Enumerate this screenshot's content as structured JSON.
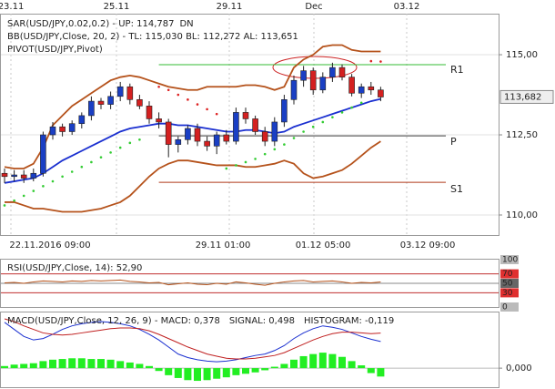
{
  "chart_data": [
    {
      "type": "candlestick",
      "legend": [
        "SAR(USD/JPY,0.02,0.2)  -  UP: 114,787",
        "BB(USD/JPY,Close, 20, 2)  -  TL: 115,030  BL: 112,272  AL: 113,651",
        "PIVOT(USD/JPY,Pivot)"
      ],
      "legend_colors": [
        "#b02020",
        "#b02020",
        "#000000"
      ],
      "sar_dn": "DN",
      "sar_dn_color": "#22bb22",
      "time_top": [
        "23.11",
        "25.11",
        "29.11",
        "Dec",
        "03.12"
      ],
      "time_bottom": [
        "22.11.2016 09:00",
        "29.11 01:00",
        "01.12 05:00",
        "03.12 09:00"
      ],
      "open": [
        111.3,
        111.2,
        111.25,
        111.15,
        111.3,
        112.5,
        112.75,
        112.6,
        112.85,
        113.1,
        113.55,
        113.45,
        113.7,
        114.0,
        113.6,
        113.4,
        113.0,
        112.9,
        112.2,
        112.35,
        112.7,
        112.3,
        112.15,
        112.5,
        112.3,
        113.2,
        113.0,
        112.6,
        112.3,
        112.9,
        113.6,
        114.2,
        114.5,
        113.9,
        114.3,
        114.6,
        114.3,
        113.8,
        114.0,
        113.9
      ],
      "high": [
        111.45,
        111.4,
        111.4,
        111.45,
        112.6,
        112.9,
        112.85,
        112.95,
        113.2,
        113.7,
        113.65,
        113.85,
        114.15,
        114.1,
        113.75,
        113.55,
        113.2,
        113.0,
        112.45,
        112.8,
        112.85,
        112.45,
        112.6,
        112.65,
        113.35,
        113.35,
        113.1,
        112.75,
        113.05,
        113.75,
        114.35,
        114.65,
        114.6,
        114.45,
        114.75,
        114.7,
        114.4,
        114.1,
        114.15,
        114.0
      ],
      "low": [
        111.0,
        111.05,
        111.0,
        111.05,
        111.2,
        112.35,
        112.45,
        112.5,
        112.7,
        112.95,
        113.3,
        113.3,
        113.55,
        113.45,
        113.3,
        112.85,
        112.7,
        111.8,
        111.95,
        112.2,
        112.15,
        112.0,
        111.9,
        112.2,
        112.2,
        112.85,
        112.5,
        112.15,
        112.15,
        112.75,
        113.45,
        114.0,
        113.75,
        113.8,
        114.15,
        114.2,
        113.7,
        113.65,
        113.75,
        113.55
      ],
      "close": [
        111.2,
        111.25,
        111.15,
        111.3,
        112.5,
        112.75,
        112.6,
        112.85,
        113.1,
        113.55,
        113.45,
        113.7,
        114.0,
        113.6,
        113.4,
        113.0,
        112.9,
        112.2,
        112.35,
        112.7,
        112.3,
        112.15,
        112.5,
        112.3,
        113.2,
        113.0,
        112.6,
        112.3,
        112.9,
        113.6,
        114.2,
        114.5,
        113.9,
        114.3,
        114.6,
        114.3,
        113.8,
        114.0,
        113.9,
        113.68
      ],
      "up_color": "#1a3fc4",
      "down_color": "#d42020",
      "overlays": [
        {
          "color": "#b5521b",
          "values": [
            111.5,
            111.45,
            111.45,
            111.6,
            112.1,
            112.8,
            113.1,
            113.4,
            113.6,
            113.8,
            114.0,
            114.2,
            114.3,
            114.35,
            114.3,
            114.2,
            114.1,
            114.0,
            113.95,
            113.9,
            113.9,
            114.0,
            114.0,
            114.0,
            114.0,
            114.05,
            114.05,
            114.0,
            113.9,
            114.0,
            114.6,
            114.85,
            115.0,
            115.25,
            115.3,
            115.3,
            115.15,
            115.1,
            115.1,
            115.1
          ]
        },
        {
          "color": "#1a2fd0",
          "values": [
            111.0,
            111.05,
            111.1,
            111.15,
            111.3,
            111.5,
            111.7,
            111.85,
            112.0,
            112.15,
            112.3,
            112.45,
            112.6,
            112.7,
            112.75,
            112.8,
            112.85,
            112.85,
            112.8,
            112.8,
            112.75,
            112.7,
            112.65,
            112.6,
            112.6,
            112.65,
            112.65,
            112.6,
            112.55,
            112.6,
            112.75,
            112.85,
            112.95,
            113.05,
            113.15,
            113.25,
            113.35,
            113.45,
            113.55,
            113.62
          ]
        },
        {
          "color": "#b5521b",
          "values": [
            110.4,
            110.4,
            110.3,
            110.2,
            110.2,
            110.15,
            110.1,
            110.1,
            110.1,
            110.15,
            110.2,
            110.3,
            110.4,
            110.6,
            110.9,
            111.2,
            111.45,
            111.6,
            111.7,
            111.7,
            111.65,
            111.6,
            111.55,
            111.55,
            111.55,
            111.5,
            111.5,
            111.55,
            111.6,
            111.7,
            111.6,
            111.3,
            111.15,
            111.2,
            111.3,
            111.4,
            111.6,
            111.85,
            112.1,
            112.3
          ]
        }
      ],
      "sar": [
        {
          "color": "#33cc33",
          "values": [
            110.3,
            110.45,
            110.6,
            110.75,
            110.9,
            111.05,
            111.2,
            111.35,
            111.5,
            111.65,
            111.8,
            111.95,
            112.1,
            112.25,
            112.35,
            null,
            null,
            null,
            null,
            null,
            null,
            null,
            null,
            111.45,
            111.55,
            111.65,
            111.75,
            111.9,
            112.05,
            112.2,
            112.4,
            112.6,
            112.75,
            112.9,
            113.05,
            113.2,
            113.35,
            113.5,
            null,
            null
          ]
        },
        {
          "color": "#dd2222",
          "values": [
            null,
            null,
            null,
            null,
            null,
            null,
            null,
            null,
            null,
            null,
            null,
            null,
            null,
            null,
            null,
            null,
            114.0,
            113.9,
            113.75,
            113.6,
            113.45,
            113.3,
            113.15,
            null,
            null,
            null,
            null,
            null,
            null,
            null,
            null,
            null,
            null,
            null,
            null,
            null,
            null,
            null,
            114.8,
            114.787
          ]
        }
      ],
      "pivots": [
        {
          "label": "R1",
          "value": 114.69,
          "color": "#33bb33"
        },
        {
          "label": "P",
          "value": 112.47,
          "color": "#444444"
        },
        {
          "label": "S1",
          "value": 111.02,
          "color": "#b03a1a"
        }
      ],
      "ylim": [
        109.375,
        116.28
      ],
      "yticks": [
        {
          "value": 110,
          "label": "110,00"
        },
        {
          "value": 112.5,
          "label": "112,50"
        },
        {
          "value": 115,
          "label": "115,00"
        }
      ],
      "last_price": {
        "value": 113.682,
        "label": "113,682"
      }
    },
    {
      "type": "line",
      "title": "RSI(USD/JPY,Close, 14): 52,90",
      "color": "#b5521b",
      "values": [
        51,
        52,
        50,
        53,
        55,
        54,
        53,
        55,
        54,
        56,
        55,
        56,
        57,
        54,
        53,
        51,
        52,
        47,
        49,
        51,
        48,
        47,
        50,
        48,
        53,
        51,
        48,
        46,
        50,
        53,
        55,
        56,
        53,
        54,
        55,
        53,
        50,
        52,
        51,
        52.9
      ],
      "ylim": [
        0,
        100
      ],
      "yticks": [
        100,
        70,
        50,
        30,
        0
      ],
      "ytick_colors": [
        "#bbbbbb",
        "#e03030",
        "#666666",
        "#e03030",
        "#bbbbbb"
      ],
      "levels": [
        70,
        50,
        30
      ],
      "level_colors": [
        "#c03030",
        "#888888",
        "#c03030"
      ]
    },
    {
      "type": "macd",
      "title": [
        "MACD(USD/JPY,Close, 12, 26, 9)  -  MACD: 0,378",
        "SIGNAL: 0,498",
        "HISTOGRAM: -0,119"
      ],
      "title_colors": [
        "#c02020",
        "#1a2fd0",
        "#22bb22"
      ],
      "series": [
        {
          "color": "#1a2fd0",
          "values": [
            0.65,
            0.55,
            0.45,
            0.4,
            0.42,
            0.48,
            0.55,
            0.6,
            0.63,
            0.65,
            0.66,
            0.65,
            0.63,
            0.6,
            0.55,
            0.48,
            0.4,
            0.3,
            0.2,
            0.15,
            0.12,
            0.1,
            0.09,
            0.1,
            0.12,
            0.15,
            0.18,
            0.2,
            0.25,
            0.32,
            0.42,
            0.5,
            0.56,
            0.6,
            0.58,
            0.55,
            0.5,
            0.45,
            0.41,
            0.378
          ]
        },
        {
          "color": "#c02020",
          "values": [
            0.7,
            0.66,
            0.6,
            0.55,
            0.5,
            0.48,
            0.47,
            0.48,
            0.5,
            0.52,
            0.54,
            0.56,
            0.57,
            0.57,
            0.56,
            0.53,
            0.48,
            0.42,
            0.36,
            0.3,
            0.25,
            0.2,
            0.17,
            0.14,
            0.13,
            0.13,
            0.14,
            0.16,
            0.18,
            0.22,
            0.28,
            0.34,
            0.4,
            0.45,
            0.49,
            0.51,
            0.51,
            0.5,
            0.49,
            0.498
          ]
        }
      ],
      "histogram": {
        "color": "#22ee22",
        "values": [
          0.03,
          0.05,
          0.06,
          0.07,
          0.1,
          0.12,
          0.13,
          0.14,
          0.14,
          0.13,
          0.13,
          0.12,
          0.1,
          0.08,
          0.06,
          0.03,
          -0.04,
          -0.1,
          -0.14,
          -0.17,
          -0.18,
          -0.17,
          -0.15,
          -0.13,
          -0.1,
          -0.08,
          -0.06,
          -0.03,
          0.02,
          0.06,
          0.12,
          0.17,
          0.2,
          0.22,
          0.2,
          0.16,
          0.1,
          0.04,
          -0.07,
          -0.119
        ]
      },
      "ylim": [
        -0.27,
        0.79
      ],
      "yticks": [
        {
          "value": 0,
          "label": "0,000"
        }
      ]
    }
  ]
}
